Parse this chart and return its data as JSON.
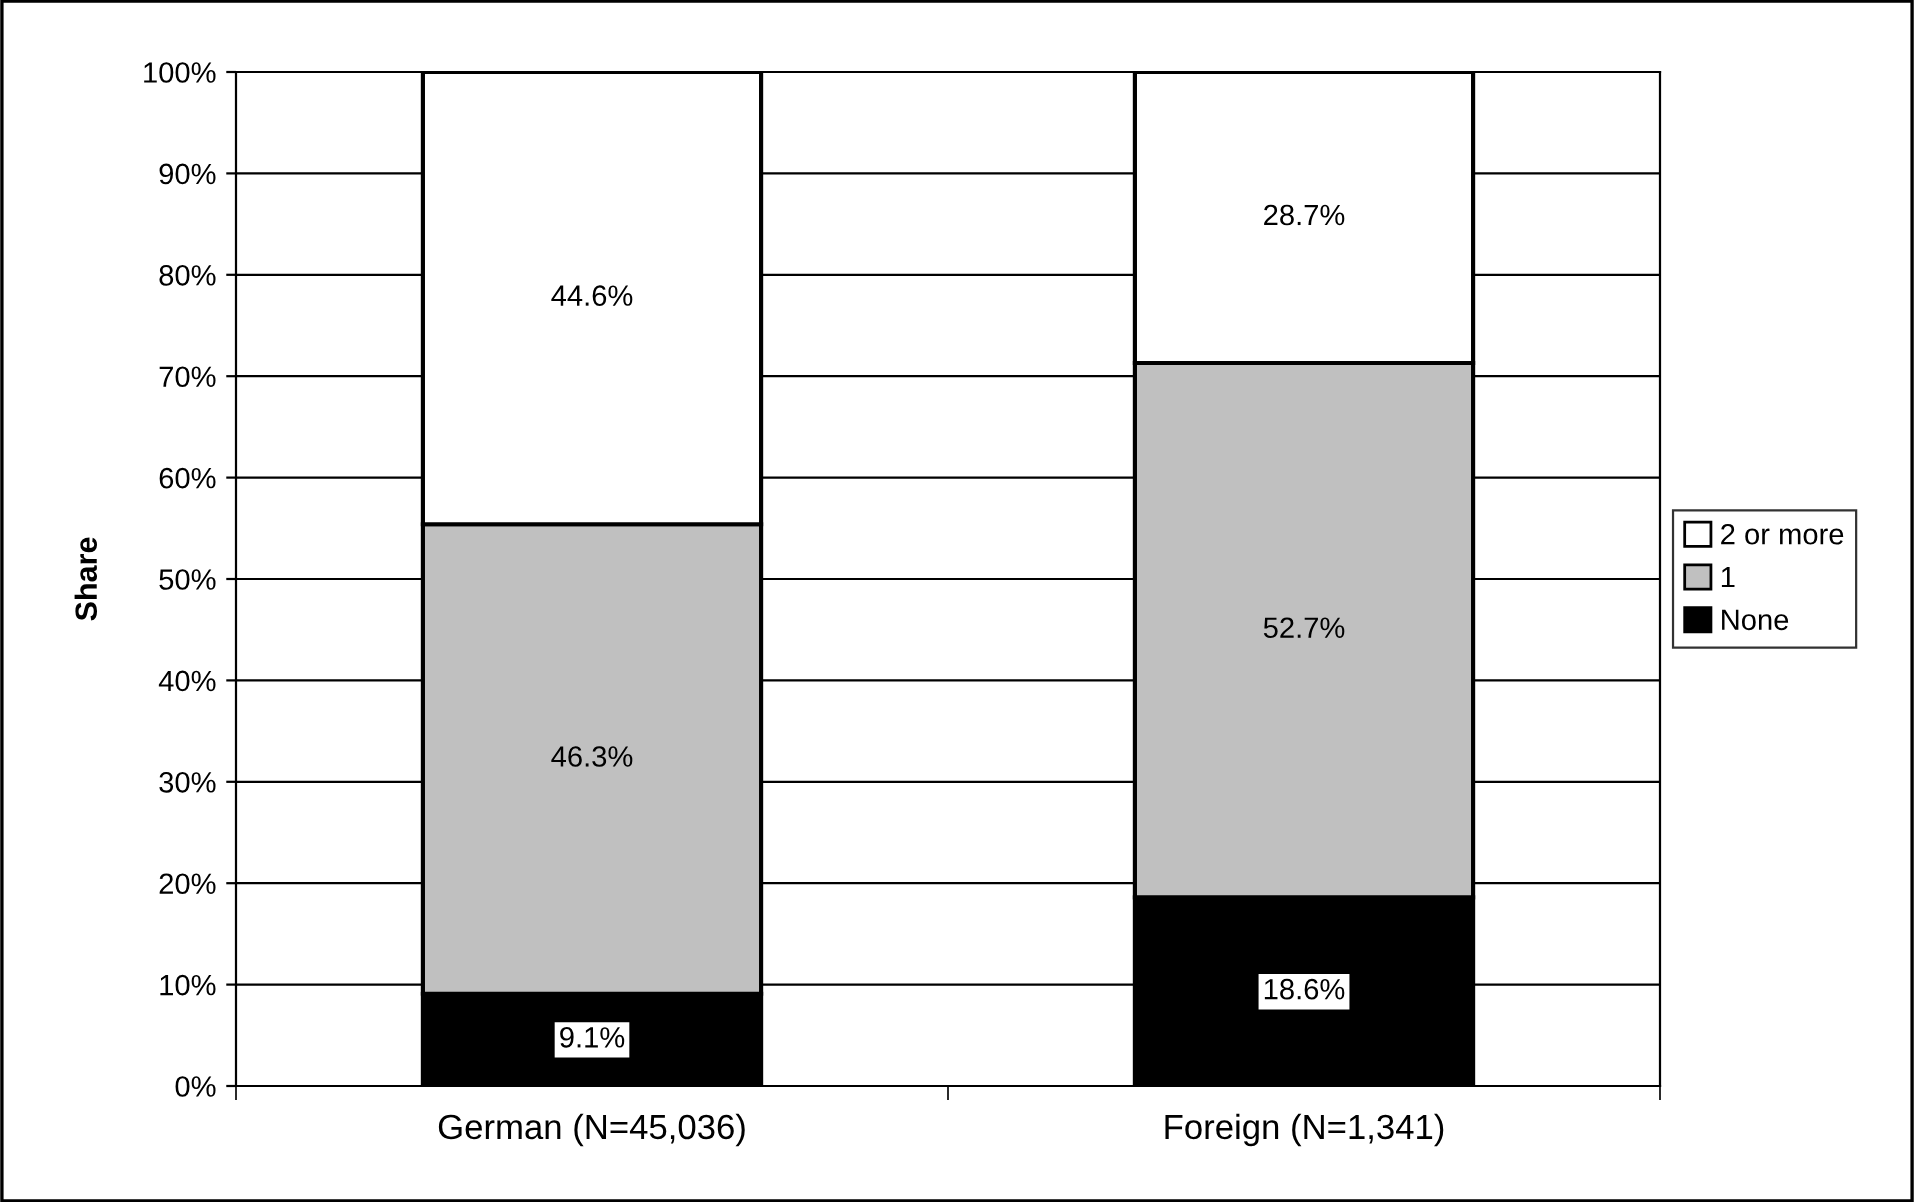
{
  "chart_data": {
    "type": "bar",
    "stacked": true,
    "ylabel": "Share",
    "categories": [
      "German (N=45,036)",
      "Foreign (N=1,341)"
    ],
    "series": [
      {
        "name": "None",
        "color": "#000000",
        "values": [
          9.1,
          18.6
        ],
        "value_labels": [
          "9.1%",
          "18.6%"
        ]
      },
      {
        "name": "1",
        "color": "#c0c0c0",
        "values": [
          46.3,
          52.7
        ],
        "value_labels": [
          "46.3%",
          "52.7%"
        ]
      },
      {
        "name": "2 or more",
        "color": "#ffffff",
        "values": [
          44.6,
          28.7
        ],
        "value_labels": [
          "44.6%",
          "28.7%"
        ]
      }
    ],
    "ylim": [
      0,
      100
    ],
    "yticks": [
      {
        "value": 0,
        "label": "0%"
      },
      {
        "value": 10,
        "label": "10%"
      },
      {
        "value": 20,
        "label": "20%"
      },
      {
        "value": 30,
        "label": "30%"
      },
      {
        "value": 40,
        "label": "40%"
      },
      {
        "value": 50,
        "label": "50%"
      },
      {
        "value": 60,
        "label": "60%"
      },
      {
        "value": 70,
        "label": "70%"
      },
      {
        "value": 80,
        "label": "80%"
      },
      {
        "value": 90,
        "label": "90%"
      },
      {
        "value": 100,
        "label": "100%"
      }
    ],
    "grid": "y",
    "legend": "right"
  }
}
